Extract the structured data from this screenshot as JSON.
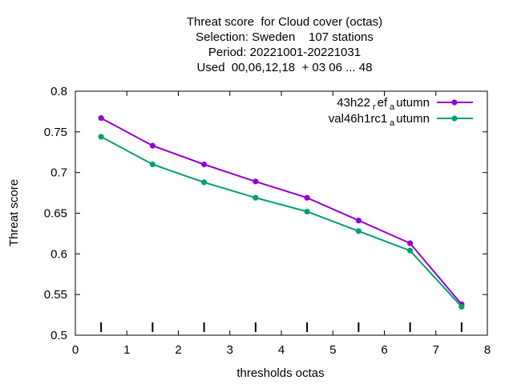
{
  "chart_data": {
    "type": "line",
    "title_lines": [
      "Threat score  for Cloud cover (octas)",
      "Selection: Sweden    107 stations",
      "Period: 20221001-20221031",
      "Used  00,06,12,18  + 03 06 ... 48"
    ],
    "xlabel": "thresholds octas",
    "ylabel": "Threat score",
    "xlim": [
      0,
      8
    ],
    "ylim": [
      0.5,
      0.8
    ],
    "x_ticks": [
      "0",
      "1",
      "2",
      "3",
      "4",
      "5",
      "6",
      "7",
      "8"
    ],
    "y_ticks": [
      "0.5",
      "0.55",
      "0.6",
      "0.65",
      "0.7",
      "0.75",
      "0.8"
    ],
    "grid": false,
    "legend_position": "top-right",
    "x": [
      0.5,
      1.5,
      2.5,
      3.5,
      4.5,
      5.5,
      6.5,
      7.5
    ],
    "series": [
      {
        "legend_main": "43h22",
        "legend_sub1": "r",
        "legend_mid": "ef",
        "legend_sub2": "a",
        "legend_tail": "utumn",
        "color": "#9400d3",
        "values": [
          0.767,
          0.733,
          0.71,
          0.689,
          0.669,
          0.641,
          0.613,
          0.538
        ]
      },
      {
        "legend_main": "val46h1rc1",
        "legend_sub1": "",
        "legend_mid": "",
        "legend_sub2": "a",
        "legend_tail": "utumn",
        "color": "#009e73",
        "values": [
          0.744,
          0.71,
          0.688,
          0.669,
          0.652,
          0.628,
          0.604,
          0.535
        ]
      }
    ]
  }
}
